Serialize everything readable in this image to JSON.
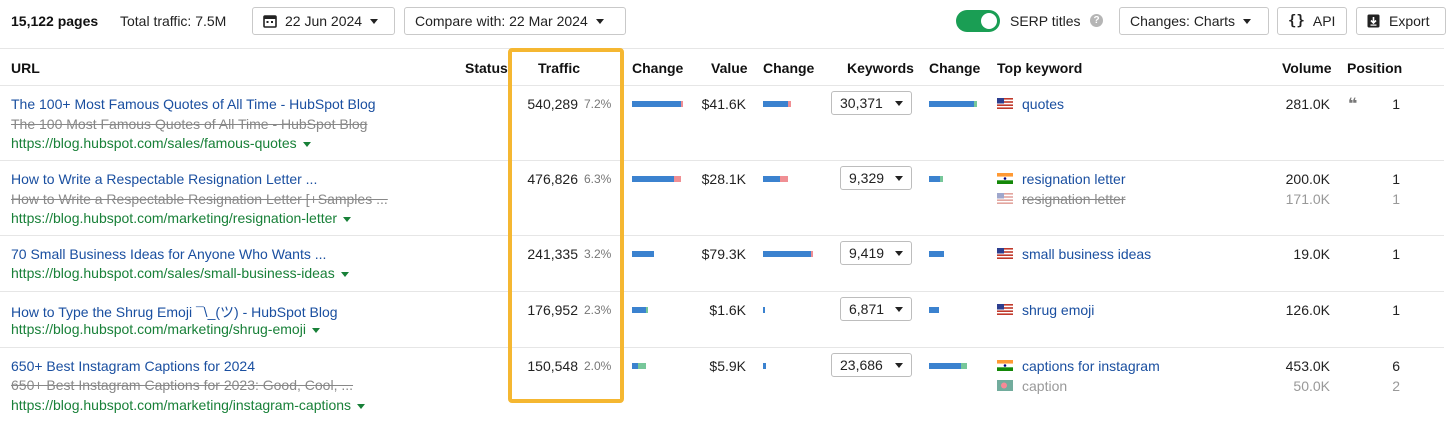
{
  "toolbar": {
    "pages": "15,122 pages",
    "total_traffic": "Total traffic: 7.5M",
    "date": "22 Jun 2024",
    "compare": "Compare with: 22 Mar 2024",
    "serp_label": "SERP titles",
    "serp_enabled": true,
    "changes": "Changes: Charts",
    "api": "API",
    "export": "Export"
  },
  "columns": {
    "url": "URL",
    "status": "Status",
    "traffic": "Traffic",
    "change1": "Change",
    "value": "Value",
    "change2": "Change",
    "keywords": "Keywords",
    "change3": "Change",
    "top_keyword": "Top keyword",
    "volume": "Volume",
    "position": "Position"
  },
  "colors": {
    "highlight": "#f5b731",
    "link": "#1a4fa0",
    "url": "#188038",
    "bar_blue": "#3b82cf",
    "bar_red": "#f08f94",
    "bar_green": "#77c79a"
  },
  "rows": [
    {
      "title": "The 100+ Most Famous Quotes of All Time - HubSpot Blog",
      "old_title": "The 100 Most Famous Quotes of All Time - HubSpot Blog",
      "url": "https://blog.hubspot.com/sales/famous-quotes",
      "traffic": "540,289",
      "traffic_pct": "7.2%",
      "value": "$41.6K",
      "keywords": "30,371",
      "keywords_list": [
        {
          "flag": "us-flag-icon",
          "keyword": "quotes",
          "volume": "281.0K",
          "position": "1",
          "current": true
        }
      ],
      "has_quote_icon": true
    },
    {
      "title": "How to Write a Respectable Resignation Letter ...",
      "old_title": "How to Write a Respectable Resignation Letter [+Samples ...",
      "url": "https://blog.hubspot.com/marketing/resignation-letter",
      "traffic": "476,826",
      "traffic_pct": "6.3%",
      "value": "$28.1K",
      "keywords": "9,329",
      "keywords_list": [
        {
          "flag": "in-flag-icon",
          "keyword": "resignation letter",
          "volume": "200.0K",
          "position": "1",
          "current": true
        },
        {
          "flag": "us-flag-icon",
          "keyword": "resignation letter",
          "volume": "171.0K",
          "position": "1",
          "current": false
        }
      ]
    },
    {
      "title": "70 Small Business Ideas for Anyone Who Wants ...",
      "old_title": "",
      "url": "https://blog.hubspot.com/sales/small-business-ideas",
      "traffic": "241,335",
      "traffic_pct": "3.2%",
      "value": "$79.3K",
      "keywords": "9,419",
      "keywords_list": [
        {
          "flag": "us-flag-icon",
          "keyword": "small business ideas",
          "volume": "19.0K",
          "position": "1",
          "current": true
        }
      ]
    },
    {
      "title": "How to Type the Shrug Emoji ¯\\_(ツ) - HubSpot Blog",
      "old_title": "",
      "url": "https://blog.hubspot.com/marketing/shrug-emoji",
      "traffic": "176,952",
      "traffic_pct": "2.3%",
      "value": "$1.6K",
      "keywords": "6,871",
      "keywords_list": [
        {
          "flag": "us-flag-icon",
          "keyword": "shrug emoji",
          "volume": "126.0K",
          "position": "1",
          "current": true
        }
      ]
    },
    {
      "title": "650+ Best Instagram Captions for 2024",
      "old_title": "650+ Best Instagram Captions for 2023: Good, Cool, ...",
      "url": "https://blog.hubspot.com/marketing/instagram-captions",
      "traffic": "150,548",
      "traffic_pct": "2.0%",
      "value": "$5.9K",
      "keywords": "23,686",
      "keywords_list": [
        {
          "flag": "in-flag-icon",
          "keyword": "captions for instagram",
          "volume": "453.0K",
          "position": "6",
          "current": true
        },
        {
          "flag": "bd-flag-icon",
          "keyword": "caption",
          "volume": "50.0K",
          "position": "2",
          "current": false
        }
      ]
    }
  ]
}
